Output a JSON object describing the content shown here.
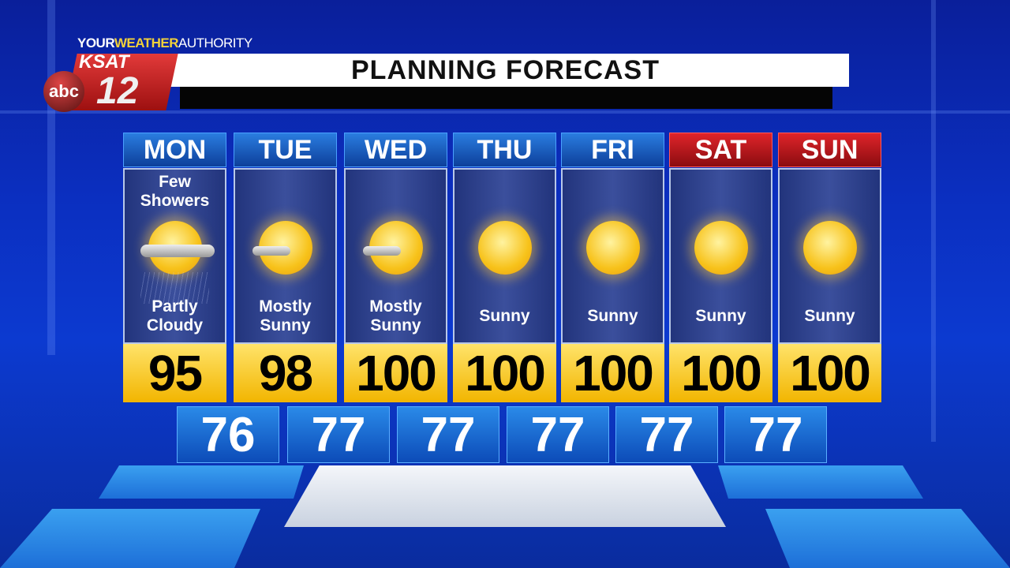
{
  "branding": {
    "tagline_your": "YOUR",
    "tagline_weather": "WEATHER",
    "tagline_authority": "AUTHORITY",
    "station": "KSAT",
    "channel": "12",
    "network": "abc"
  },
  "title": "PLANNING FORECAST",
  "colors": {
    "weekday_header": "#1f66cc",
    "weekend_header": "#c8181e",
    "high_box": "#f5c21a",
    "low_box": "#1e70d8"
  },
  "days": [
    {
      "name": "MON",
      "top": "Few Showers",
      "condition": "Partly Cloudy",
      "icon": "partly-cloudy-showers-icon",
      "high": "95",
      "low": "76"
    },
    {
      "name": "TUE",
      "top": "",
      "condition": "Mostly Sunny",
      "icon": "mostly-sunny-icon",
      "high": "98",
      "low": "77"
    },
    {
      "name": "WED",
      "top": "",
      "condition": "Mostly Sunny",
      "icon": "mostly-sunny-icon",
      "high": "100",
      "low": "77"
    },
    {
      "name": "THU",
      "top": "",
      "condition": "Sunny",
      "icon": "sunny-icon",
      "high": "100",
      "low": "77"
    },
    {
      "name": "FRI",
      "top": "",
      "condition": "Sunny",
      "icon": "sunny-icon",
      "high": "100",
      "low": "77"
    },
    {
      "name": "SAT",
      "top": "",
      "condition": "Sunny",
      "icon": "sunny-icon",
      "high": "100",
      "low": "77"
    },
    {
      "name": "SUN",
      "top": "",
      "condition": "Sunny",
      "icon": "sunny-icon",
      "high": "100"
    }
  ]
}
